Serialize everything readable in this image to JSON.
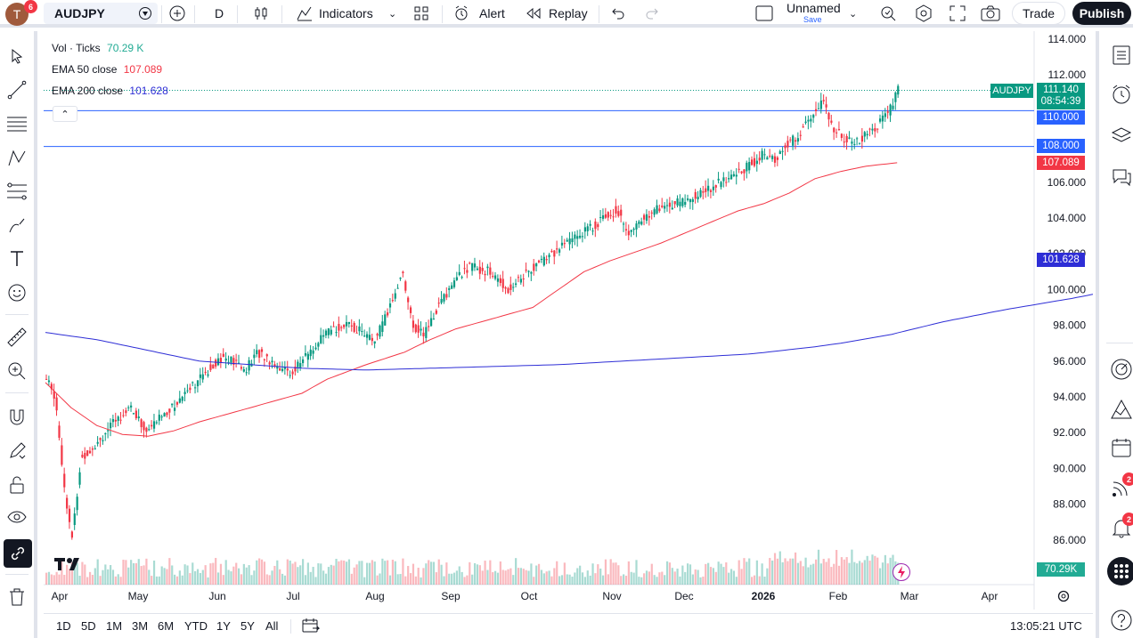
{
  "topbar": {
    "avatar_letter": "T",
    "avatar_badge": "6",
    "symbol": "AUDJPY",
    "interval": "D",
    "indicators_label": "Indicators",
    "alert_label": "Alert",
    "replay_label": "Replay",
    "layout_name": "Unnamed",
    "layout_sub": "Save",
    "trade_label": "Trade",
    "publish_label": "Publish"
  },
  "legend": {
    "vol_title": "Vol · Ticks",
    "vol_value": "70.29 K",
    "ema50_title": "EMA 50 close",
    "ema50_value": "107.089",
    "ema200_title": "EMA 200 close",
    "ema200_value": "101.628"
  },
  "price_axis": {
    "ticks": [
      "114.000",
      "112.000",
      "106.000",
      "104.000",
      "102.000",
      "100.000",
      "98.000",
      "96.000",
      "94.000",
      "92.000",
      "90.000",
      "88.000",
      "86.000"
    ],
    "symbol_tag": "AUDJPY",
    "last_price": "111.140",
    "countdown": "08:54:39",
    "hline1": "110.000",
    "hline2": "108.000",
    "ema50_label": "107.089",
    "ema200_label": "101.628",
    "volume_label": "70.29K"
  },
  "time_axis": {
    "labels": [
      "Apr",
      "May",
      "Jun",
      "Jul",
      "Aug",
      "Sep",
      "Oct",
      "Nov",
      "Dec",
      "2026",
      "Feb",
      "Mar",
      "Apr"
    ]
  },
  "bottom": {
    "ranges": [
      "1D",
      "5D",
      "1M",
      "3M",
      "6M",
      "YTD",
      "1Y",
      "5Y",
      "All"
    ],
    "clock": "13:05:21 UTC"
  },
  "right_badges": {
    "feed": "2",
    "alerts": "2"
  },
  "colors": {
    "up": "#089981",
    "down": "#f23645",
    "ema50": "#f23645",
    "ema200": "#2e2ed6",
    "hline": "#2962ff"
  },
  "chart_data": {
    "type": "candlestick",
    "symbol": "AUDJPY",
    "timeframe": "D",
    "ylim": [
      85,
      115
    ],
    "horizontal_lines": [
      110.0,
      108.0
    ],
    "last": 111.14,
    "trend_points": {
      "close": [
        [
          0,
          95.0
        ],
        [
          7,
          94.0
        ],
        [
          14,
          89.0
        ],
        [
          20,
          86.0
        ],
        [
          27,
          90.5
        ],
        [
          40,
          91.5
        ],
        [
          52,
          92.5
        ],
        [
          65,
          93.5
        ],
        [
          78,
          92.0
        ],
        [
          90,
          93.0
        ],
        [
          100,
          93.5
        ],
        [
          110,
          94.5
        ],
        [
          120,
          95.0
        ],
        [
          135,
          96.2
        ],
        [
          145,
          96.0
        ],
        [
          155,
          95.5
        ],
        [
          165,
          96.5
        ],
        [
          180,
          95.8
        ],
        [
          190,
          95.3
        ],
        [
          205,
          96.5
        ],
        [
          218,
          97.5
        ],
        [
          230,
          98.0
        ],
        [
          245,
          97.8
        ],
        [
          255,
          97.0
        ],
        [
          265,
          98.5
        ],
        [
          278,
          101.0
        ],
        [
          285,
          98.0
        ],
        [
          295,
          97.5
        ],
        [
          305,
          99.0
        ],
        [
          318,
          100.5
        ],
        [
          330,
          101.3
        ],
        [
          345,
          101.0
        ],
        [
          360,
          100.0
        ],
        [
          372,
          100.8
        ],
        [
          385,
          101.5
        ],
        [
          400,
          102.3
        ],
        [
          412,
          103.0
        ],
        [
          425,
          103.5
        ],
        [
          435,
          104.0
        ],
        [
          445,
          104.5
        ],
        [
          455,
          103.0
        ],
        [
          465,
          104.0
        ],
        [
          475,
          104.5
        ],
        [
          490,
          104.8
        ],
        [
          505,
          105.2
        ],
        [
          520,
          105.8
        ],
        [
          535,
          106.3
        ],
        [
          545,
          106.8
        ],
        [
          558,
          107.5
        ],
        [
          568,
          107.2
        ],
        [
          576,
          108.0
        ],
        [
          585,
          108.5
        ],
        [
          598,
          109.8
        ],
        [
          606,
          110.5
        ],
        [
          612,
          109.2
        ],
        [
          620,
          108.5
        ],
        [
          632,
          108.2
        ],
        [
          645,
          109.0
        ],
        [
          656,
          109.8
        ],
        [
          664,
          111.14
        ]
      ],
      "ema50": [
        [
          0,
          94.8
        ],
        [
          20,
          93.4
        ],
        [
          40,
          92.4
        ],
        [
          60,
          91.9
        ],
        [
          80,
          91.8
        ],
        [
          100,
          92.1
        ],
        [
          120,
          92.6
        ],
        [
          150,
          93.2
        ],
        [
          180,
          93.8
        ],
        [
          200,
          94.2
        ],
        [
          220,
          95.0
        ],
        [
          250,
          95.8
        ],
        [
          280,
          96.5
        ],
        [
          300,
          97.2
        ],
        [
          320,
          97.8
        ],
        [
          345,
          98.3
        ],
        [
          360,
          98.6
        ],
        [
          380,
          99.0
        ],
        [
          400,
          100.0
        ],
        [
          420,
          101.0
        ],
        [
          440,
          101.6
        ],
        [
          460,
          102.1
        ],
        [
          480,
          102.6
        ],
        [
          500,
          103.2
        ],
        [
          520,
          103.8
        ],
        [
          540,
          104.4
        ],
        [
          560,
          104.8
        ],
        [
          580,
          105.4
        ],
        [
          600,
          106.2
        ],
        [
          620,
          106.6
        ],
        [
          640,
          106.9
        ],
        [
          664,
          107.089
        ]
      ],
      "ema200": [
        [
          0,
          97.6
        ],
        [
          40,
          97.2
        ],
        [
          80,
          96.6
        ],
        [
          120,
          96.0
        ],
        [
          160,
          95.8
        ],
        [
          200,
          95.6
        ],
        [
          250,
          95.5
        ],
        [
          300,
          95.6
        ],
        [
          350,
          95.7
        ],
        [
          400,
          95.8
        ],
        [
          450,
          96.0
        ],
        [
          500,
          96.2
        ],
        [
          550,
          96.4
        ],
        [
          600,
          96.8
        ],
        [
          620,
          97.0
        ],
        [
          660,
          97.5
        ],
        [
          700,
          98.2
        ],
        [
          750,
          98.9
        ],
        [
          800,
          99.5
        ],
        [
          850,
          100.2
        ],
        [
          900,
          100.8
        ],
        [
          960,
          101.628
        ]
      ]
    }
  }
}
